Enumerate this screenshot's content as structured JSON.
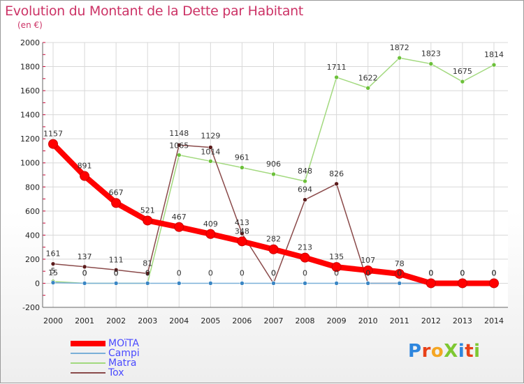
{
  "title": "Evolution du Montant de la Dette par Habitant",
  "unit": "(en €)",
  "logo_text": "ProXiti",
  "colors": {
    "title": "#cc3366",
    "grid_tick": "#cc0033",
    "legend_text": "#4a4aff"
  },
  "chart_data": {
    "type": "line",
    "title": "Evolution du Montant de la Dette par Habitant",
    "ylabel": "(en €)",
    "x": [
      "2000",
      "2001",
      "2002",
      "2003",
      "2004",
      "2005",
      "2006",
      "2007",
      "2008",
      "2009",
      "2010",
      "2011",
      "2012",
      "2013",
      "2014"
    ],
    "ylim": [
      -200,
      2000
    ],
    "yticks": [
      -200,
      0,
      200,
      400,
      600,
      800,
      1000,
      1200,
      1400,
      1600,
      1800,
      2000
    ],
    "grid": true,
    "legend_position": "bottom-left",
    "series": [
      {
        "name": "MOïTA",
        "color": "#ff0000",
        "marker_color": "#ff0000",
        "values": [
          1157,
          891,
          667,
          521,
          467,
          409,
          348,
          282,
          213,
          135,
          107,
          78,
          0,
          0,
          0
        ],
        "bold": true
      },
      {
        "name": "Campi",
        "color": "#7ab0d8",
        "marker_color": "#3a86c4",
        "values": [
          5,
          0,
          0,
          0,
          0,
          0,
          0,
          0,
          0,
          0,
          0,
          0,
          0,
          0,
          0
        ]
      },
      {
        "name": "Matra",
        "color": "#a2d97e",
        "marker_color": "#6cc03a",
        "values": [
          15,
          0,
          0,
          0,
          1065,
          1014,
          961,
          906,
          848,
          1711,
          1622,
          1872,
          1823,
          1675,
          1814
        ]
      },
      {
        "name": "Tox",
        "color": "#8a4a4a",
        "marker_color": "#5a1a1a",
        "values": [
          161,
          137,
          111,
          81,
          1148,
          1129,
          413,
          0,
          694,
          826,
          0,
          0,
          0,
          0,
          0
        ]
      }
    ]
  }
}
